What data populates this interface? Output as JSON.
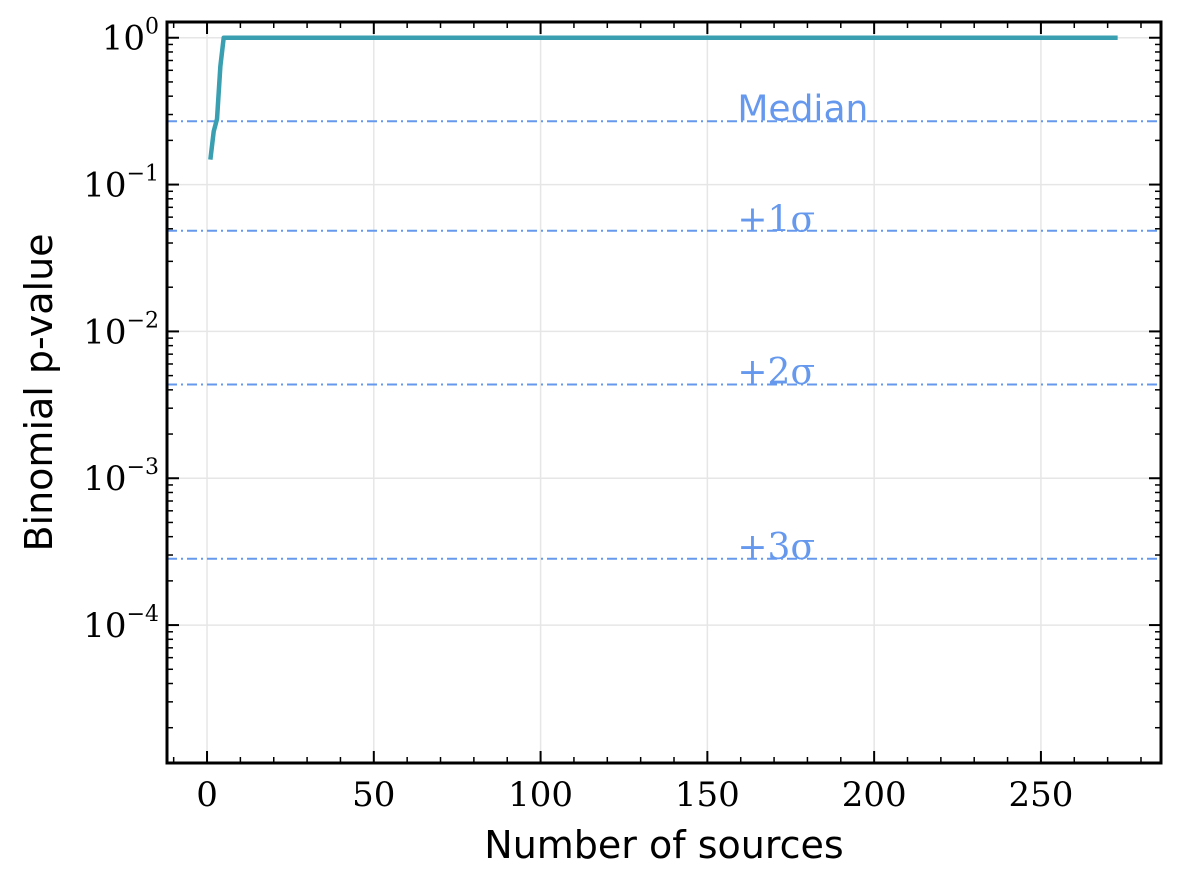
{
  "chart_data": {
    "type": "line",
    "xlabel": "Number of sources",
    "ylabel": "Binomial p-value",
    "xlim": [
      -12,
      286
    ],
    "ylim": [
      1.15e-05,
      1.28
    ],
    "y_scale": "log",
    "grid": true,
    "x_ticks": [
      0,
      50,
      100,
      150,
      200,
      250
    ],
    "y_ticks": [
      {
        "value": 0.0001,
        "base": "10",
        "exp": "−4"
      },
      {
        "value": 0.001,
        "base": "10",
        "exp": "−3"
      },
      {
        "value": 0.01,
        "base": "10",
        "exp": "−2"
      },
      {
        "value": 0.1,
        "base": "10",
        "exp": "−1"
      },
      {
        "value": 1,
        "base": "10",
        "exp": "0"
      }
    ],
    "series": [
      {
        "color": "#3a9fb0",
        "x": [
          1,
          2,
          3,
          4,
          5,
          273
        ],
        "y": [
          0.148,
          0.23,
          0.28,
          0.64,
          1.0,
          1.0
        ]
      }
    ],
    "reference_lines": [
      {
        "label": "Median",
        "value": 0.27,
        "label_x": 159,
        "label_y": 0.33,
        "math": false
      },
      {
        "label": "+1σ",
        "value": 0.0485,
        "label_x": 159,
        "label_y": 0.058,
        "math": true
      },
      {
        "label": "+2σ",
        "value": 0.00435,
        "label_x": 159,
        "label_y": 0.0053,
        "math": true
      },
      {
        "label": "+3σ",
        "value": 0.000283,
        "label_x": 159,
        "label_y": 0.00034,
        "math": true
      }
    ],
    "reference_color": "#6699ee"
  }
}
